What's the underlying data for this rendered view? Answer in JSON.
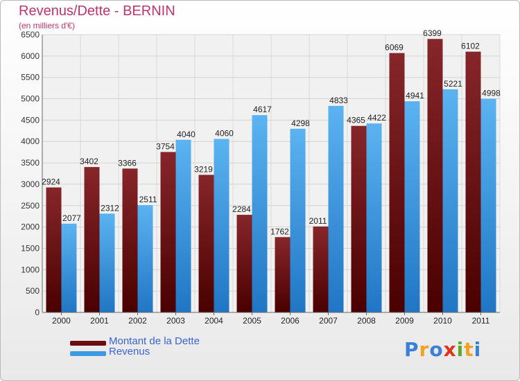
{
  "title": "Revenus/Dette - BERNIN",
  "subtitle": "(en milliers d'€)",
  "chart_data": {
    "type": "bar",
    "title": "Revenus/Dette - BERNIN",
    "subtitle": "(en milliers d'€)",
    "categories": [
      "2000",
      "2001",
      "2002",
      "2003",
      "2004",
      "2005",
      "2006",
      "2007",
      "2008",
      "2009",
      "2010",
      "2011"
    ],
    "series": [
      {
        "name": "Montant de la Dette",
        "color": "#7a0f14",
        "values": [
          2924,
          3402,
          3366,
          3754,
          3219,
          2284,
          1762,
          2011,
          4365,
          6069,
          6399,
          6102
        ]
      },
      {
        "name": "Revenus",
        "color": "#3d9be4",
        "values": [
          2077,
          2312,
          2511,
          4040,
          4060,
          4617,
          4298,
          4833,
          4422,
          4941,
          5221,
          4998
        ]
      }
    ],
    "ylim": [
      0,
      6500
    ],
    "yticks": [
      0,
      500,
      1000,
      1500,
      2000,
      2500,
      3000,
      3500,
      4000,
      4500,
      5000,
      5500,
      6000,
      6500
    ],
    "grid": true,
    "legend": "bottom-left"
  },
  "legend": {
    "items": [
      {
        "label": "Montant de la Dette",
        "color": "#6b0c10"
      },
      {
        "label": "Revenus",
        "color": "#3d9be4"
      }
    ]
  },
  "logo": {
    "letters": [
      "P",
      "r",
      "o",
      "x",
      "i",
      "t",
      "i"
    ],
    "colors": [
      "#3b7fd6",
      "#f2a21e",
      "#3b7fd6",
      "#e0331c",
      "#5aa82e",
      "#f2a21e",
      "#3b7fd6"
    ]
  }
}
